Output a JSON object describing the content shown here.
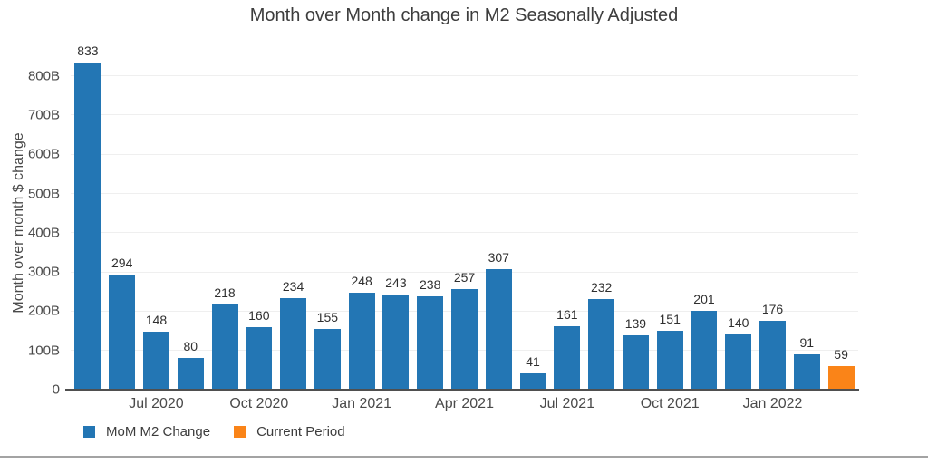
{
  "title": "Month over Month change in M2 Seasonally Adjusted",
  "colors": {
    "bar_blue": "#2376b4",
    "bar_orange": "#fa8418",
    "gridline": "#efefef",
    "axis_line": "#4f4f4f",
    "title_text": "#3d3d3d",
    "tick_text": "#4a4a4a",
    "bar_label_text": "#2f2f2f"
  },
  "y_axis": {
    "label": "Month over month $ change",
    "ticks": [
      {
        "label": "0",
        "value": 0
      },
      {
        "label": "100B",
        "value": 100
      },
      {
        "label": "200B",
        "value": 200
      },
      {
        "label": "300B",
        "value": 300
      },
      {
        "label": "400B",
        "value": 400
      },
      {
        "label": "500B",
        "value": 500
      },
      {
        "label": "600B",
        "value": 600
      },
      {
        "label": "700B",
        "value": 700
      },
      {
        "label": "800B",
        "value": 800
      }
    ]
  },
  "legend": [
    {
      "label": "MoM M2 Change",
      "color": "#2376b4"
    },
    {
      "label": "Current Period",
      "color": "#fa8418"
    }
  ],
  "chart_data": {
    "type": "bar",
    "title": "Month over Month change in M2 Seasonally Adjusted",
    "xlabel": "",
    "ylabel": "Month over month $ change",
    "ylim": [
      0,
      850
    ],
    "grid": true,
    "legend_position": "bottom-left",
    "values": [
      833,
      294,
      148,
      80,
      218,
      160,
      234,
      155,
      248,
      243,
      238,
      257,
      307,
      41,
      161,
      232,
      139,
      151,
      201,
      140,
      176,
      91,
      59
    ],
    "bar_value_labels": [
      "833",
      "294",
      "148",
      "80",
      "218",
      "160",
      "234",
      "155",
      "248",
      "243",
      "238",
      "257",
      "307",
      "41",
      "161",
      "232",
      "139",
      "151",
      "201",
      "140",
      "176",
      "91",
      "59"
    ],
    "x_ticks": [
      {
        "position": 2,
        "label": "Jul 2020"
      },
      {
        "position": 5,
        "label": "Oct 2020"
      },
      {
        "position": 8,
        "label": "Jan 2021"
      },
      {
        "position": 11,
        "label": "Apr 2021"
      },
      {
        "position": 14,
        "label": "Jul 2021"
      },
      {
        "position": 17,
        "label": "Oct 2021"
      },
      {
        "position": 20,
        "label": "Jan 2022"
      }
    ],
    "series": [
      {
        "name": "MoM M2 Change",
        "color": "#2376b4",
        "bar_indices": "0-21"
      },
      {
        "name": "Current Period",
        "color": "#fa8418",
        "bar_indices": "22"
      }
    ],
    "current_period_index": 22
  }
}
